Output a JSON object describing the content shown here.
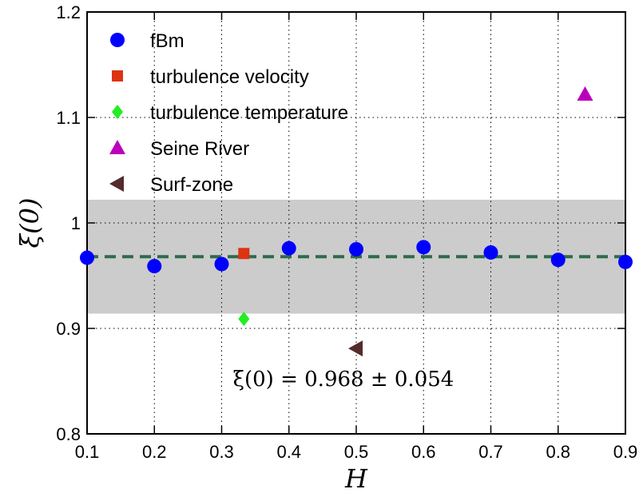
{
  "chart_data": {
    "type": "scatter",
    "xlabel": "H",
    "ylabel": "ξ(0)",
    "xlim": [
      0.1,
      0.9
    ],
    "ylim": [
      0.8,
      1.2
    ],
    "x_ticks": [
      "0.1",
      "0.2",
      "0.3",
      "0.4",
      "0.5",
      "0.6",
      "0.7",
      "0.8",
      "0.9"
    ],
    "y_ticks": [
      "0.8",
      "0.9",
      "1",
      "1.1",
      "1.2"
    ],
    "grid": true,
    "legend_position": "top-left",
    "mean_line": {
      "y": 0.968,
      "color": "#2e6b4a",
      "style": "dashed"
    },
    "band": {
      "y_min": 0.914,
      "y_max": 1.022,
      "color": "#cccccc"
    },
    "annotation": "ξ(0) = 0.968 ± 0.054",
    "series": [
      {
        "name": "fBm",
        "marker": "circle",
        "color": "#0000ff",
        "points": [
          [
            0.1,
            0.967
          ],
          [
            0.2,
            0.959
          ],
          [
            0.3,
            0.961
          ],
          [
            0.4,
            0.976
          ],
          [
            0.5,
            0.975
          ],
          [
            0.6,
            0.977
          ],
          [
            0.7,
            0.972
          ],
          [
            0.8,
            0.965
          ],
          [
            0.9,
            0.963
          ]
        ]
      },
      {
        "name": "turbulence velocity",
        "marker": "square",
        "color": "#dd3311",
        "points": [
          [
            0.333,
            0.971
          ]
        ]
      },
      {
        "name": "turbulence temperature",
        "marker": "diamond",
        "color": "#22ee22",
        "points": [
          [
            0.333,
            0.909
          ]
        ]
      },
      {
        "name": "Seine River",
        "marker": "triangle-up",
        "color": "#bb00bb",
        "points": [
          [
            0.84,
            1.122
          ]
        ]
      },
      {
        "name": "Surf-zone",
        "marker": "triangle-left",
        "color": "#552b2b",
        "points": [
          [
            0.5,
            0.881
          ]
        ]
      }
    ]
  }
}
